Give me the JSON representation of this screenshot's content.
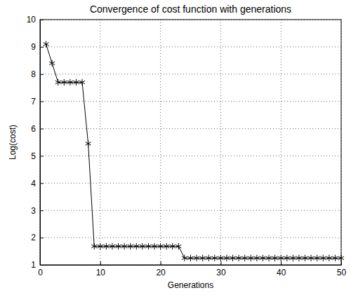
{
  "chart_data": {
    "type": "line",
    "title": "Convergence of cost function with generations",
    "x_label": "Generations",
    "y_label": "Log(cost)",
    "x": [
      1,
      2,
      3,
      4,
      5,
      6,
      7,
      8,
      9,
      10,
      11,
      12,
      13,
      14,
      15,
      16,
      17,
      18,
      19,
      20,
      21,
      22,
      23,
      24,
      25,
      26,
      27,
      28,
      29,
      30,
      31,
      32,
      33,
      34,
      35,
      36,
      37,
      38,
      39,
      40,
      41,
      42,
      43,
      44,
      45,
      46,
      47,
      48,
      49,
      50
    ],
    "values": [
      9.1,
      8.4,
      7.7,
      7.7,
      7.7,
      7.7,
      7.7,
      5.45,
      1.68,
      1.68,
      1.68,
      1.68,
      1.68,
      1.68,
      1.68,
      1.68,
      1.68,
      1.68,
      1.68,
      1.68,
      1.68,
      1.68,
      1.68,
      1.25,
      1.25,
      1.25,
      1.25,
      1.25,
      1.25,
      1.25,
      1.25,
      1.25,
      1.25,
      1.25,
      1.25,
      1.25,
      1.25,
      1.25,
      1.25,
      1.25,
      1.25,
      1.25,
      1.25,
      1.25,
      1.25,
      1.25,
      1.25,
      1.25,
      1.25,
      1.25
    ],
    "color": "#000000",
    "marker": "asterisk",
    "line_style": "solid",
    "xlim": [
      0,
      50
    ],
    "ylim": [
      1,
      10
    ],
    "xticks": [
      0,
      10,
      20,
      30,
      40,
      50
    ],
    "yticks": [
      1,
      2,
      3,
      4,
      5,
      6,
      7,
      8,
      9,
      10
    ],
    "grid": true
  }
}
